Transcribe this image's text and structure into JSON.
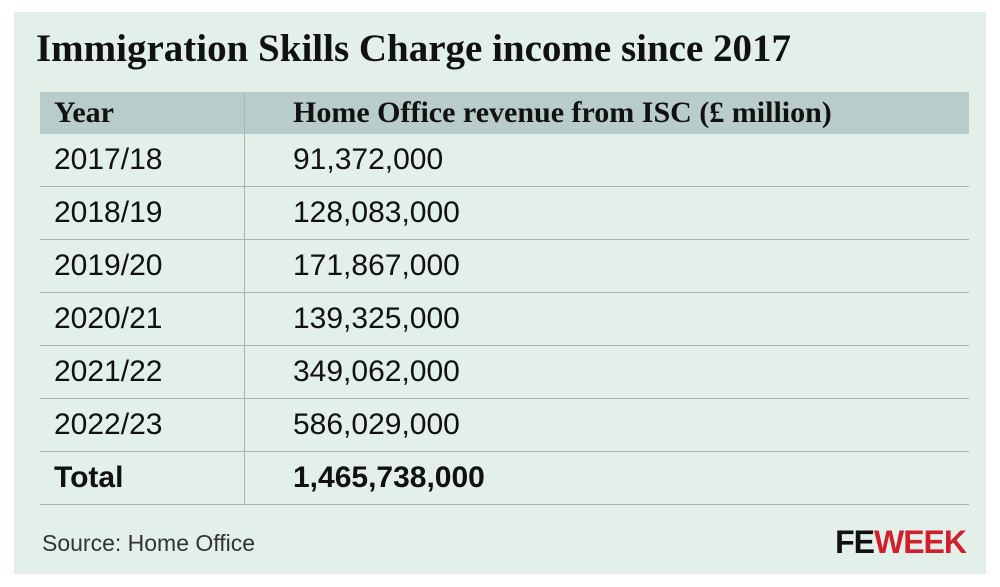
{
  "header": {
    "title": "Immigration Skills Charge income since 2017"
  },
  "table": {
    "columns": [
      "Year",
      "Home Office revenue from ISC (£ million)"
    ],
    "rows": [
      [
        "2017/18",
        "91,372,000"
      ],
      [
        "2018/19",
        "128,083,000"
      ],
      [
        "2019/20",
        "171,867,000"
      ],
      [
        "2020/21",
        "139,325,000"
      ],
      [
        "2021/22",
        "349,062,000"
      ],
      [
        "2022/23",
        "586,029,000"
      ]
    ],
    "total": [
      "Total",
      "1,465,738,000"
    ]
  },
  "footer": {
    "source": "Source: Home Office",
    "logo_left": "FE",
    "logo_right": "WEEK"
  }
}
